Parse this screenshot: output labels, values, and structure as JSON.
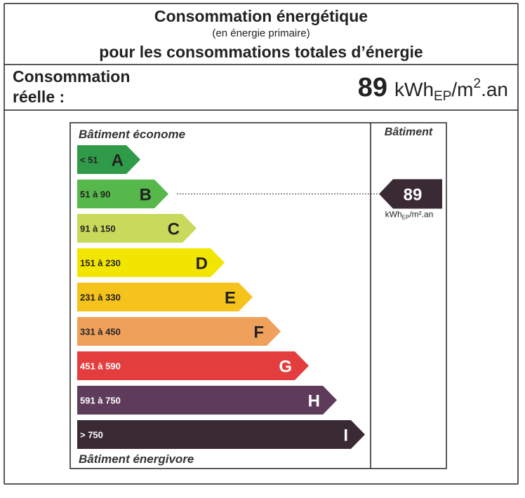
{
  "header": {
    "title": "Consommation énergétique",
    "subtitle": "(en énergie primaire)",
    "line2": "pour les consommations totales d’énergie"
  },
  "consumption": {
    "label_line1": "Consommation",
    "label_line2": "réelle :",
    "value": 89,
    "unit": {
      "base": "kWh",
      "sub": "EP",
      "mid": "/m",
      "sup": "2",
      "end": ".an"
    }
  },
  "label": {
    "top": "Bâtiment économe",
    "bottom": "Bâtiment énergivore",
    "column_header": "Bâtiment",
    "marker_unit": {
      "base": "kWh",
      "sub": "EP",
      "end": "/m².an"
    },
    "classes": [
      {
        "range": "< 51",
        "letter": "A",
        "color": "#2f9a48"
      },
      {
        "range": "51 à 90",
        "letter": "B",
        "color": "#56b84a"
      },
      {
        "range": "91 à 150",
        "letter": "C",
        "color": "#c8da5c"
      },
      {
        "range": "151 à 230",
        "letter": "D",
        "color": "#f2e500"
      },
      {
        "range": "231 à 330",
        "letter": "E",
        "color": "#f6c21c"
      },
      {
        "range": "331 à 450",
        "letter": "F",
        "color": "#efa15c"
      },
      {
        "range": "451 à 590",
        "letter": "G",
        "color": "#e33d3e"
      },
      {
        "range": "591 à 750",
        "letter": "H",
        "color": "#5e3b5b"
      },
      {
        "range": "> 750",
        "letter": "I",
        "color": "#3a2a33"
      }
    ]
  }
}
